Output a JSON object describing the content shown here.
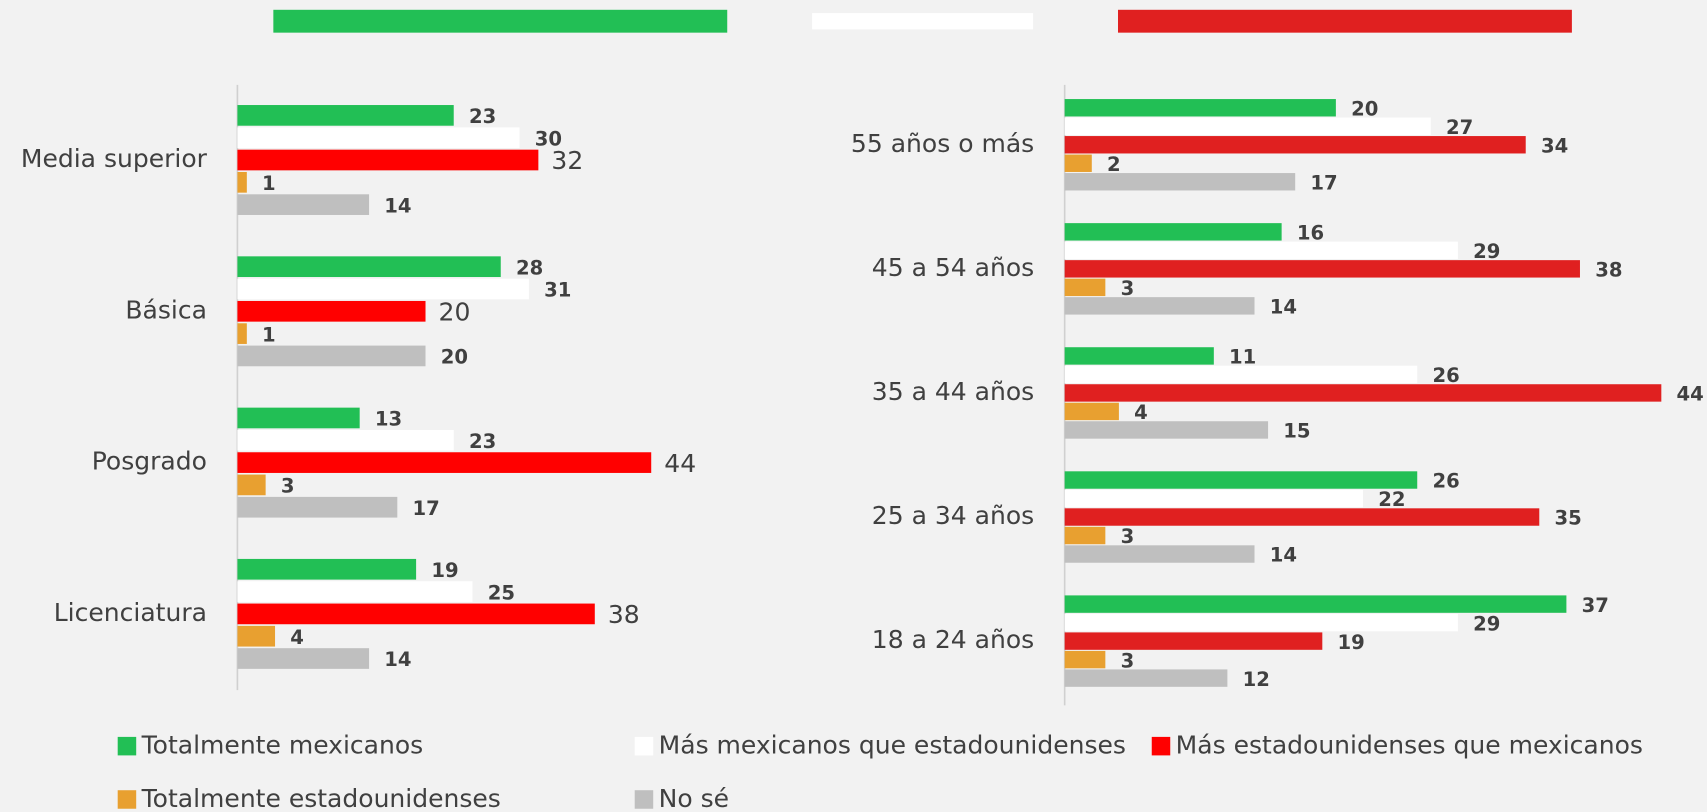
{
  "chart_data": [
    {
      "type": "bar",
      "orientation": "horizontal",
      "categories": [
        "Media superior",
        "Básica",
        "Posgrado",
        "Licenciatura"
      ],
      "xlim": [
        0,
        50
      ],
      "series": [
        {
          "name": "Totalmente mexicanos",
          "color": "#22bf55",
          "values": [
            23,
            28,
            13,
            19
          ]
        },
        {
          "name": "Más mexicanos que estadounidenses",
          "color": "#ffffff",
          "values": [
            30,
            31,
            23,
            25
          ]
        },
        {
          "name": "Más estadounidenses que mexicanos",
          "color": "#ff0000",
          "values": [
            32,
            20,
            44,
            38
          ]
        },
        {
          "name": "Totalmente estadounidenses",
          "color": "#e8a030",
          "values": [
            1,
            1,
            3,
            4
          ]
        },
        {
          "name": "No sé",
          "color": "#bfbfbf",
          "values": [
            14,
            20,
            17,
            14
          ]
        }
      ]
    },
    {
      "type": "bar",
      "orientation": "horizontal",
      "categories": [
        "55 años o más",
        "45 a 54 años",
        "35 a 44 años",
        "25 a 34 años",
        "18 a 24 años"
      ],
      "xlim": [
        0,
        48
      ],
      "series": [
        {
          "name": "Totalmente mexicanos",
          "color": "#22bf55",
          "values": [
            20,
            16,
            11,
            26,
            37
          ]
        },
        {
          "name": "Más mexicanos que estadounidenses",
          "color": "#ffffff",
          "values": [
            27,
            29,
            26,
            22,
            29
          ]
        },
        {
          "name": "Más estadounidenses que mexicanos",
          "color": "#e02020",
          "values": [
            34,
            38,
            44,
            35,
            19
          ]
        },
        {
          "name": "Totalmente estadounidenses",
          "color": "#e8a030",
          "values": [
            2,
            3,
            4,
            3,
            3
          ]
        },
        {
          "name": "No sé",
          "color": "#bfbfbf",
          "values": [
            17,
            14,
            15,
            14,
            12
          ]
        }
      ]
    }
  ]
}
